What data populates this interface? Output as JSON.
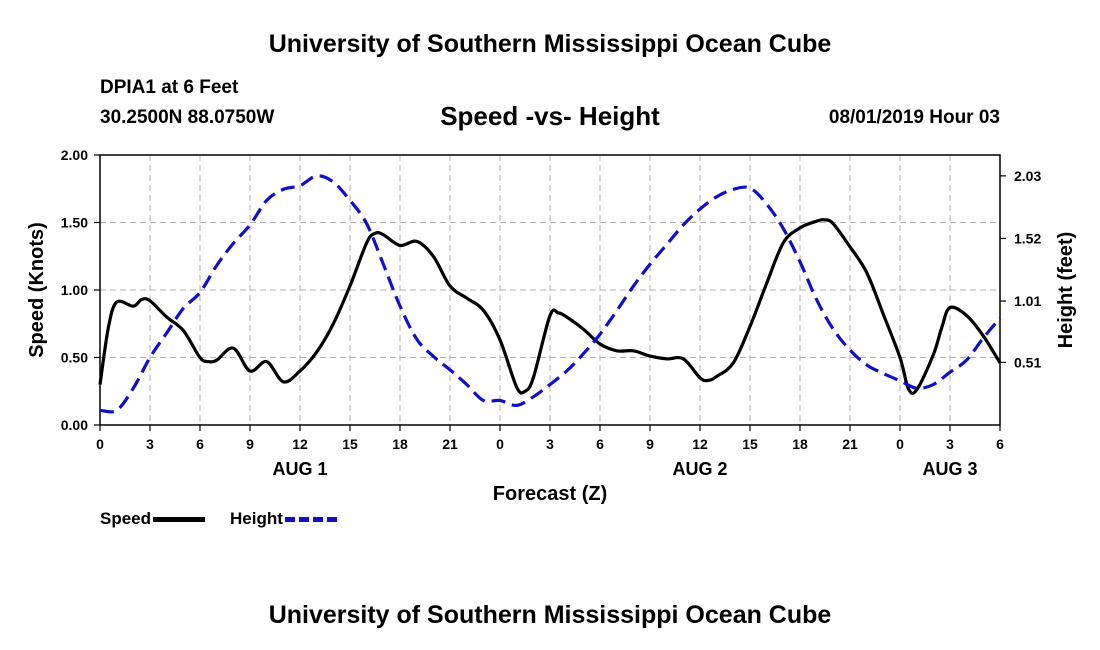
{
  "header": {
    "title": "University of Southern Mississippi Ocean Cube",
    "station": "DPIA1 at 6 Feet",
    "location": "30.2500N 88.0750W",
    "chart_title": "Speed -vs- Height",
    "datetime": "08/01/2019 Hour 03"
  },
  "footer": {
    "title": "University of Southern Mississippi Ocean Cube"
  },
  "legend": {
    "speed_label": "Speed",
    "height_label": "Height"
  },
  "colors": {
    "speed": "#000000",
    "height": "#1010c8",
    "grid": "#b0b0b0"
  },
  "chart_data": {
    "type": "line",
    "title": "Speed -vs- Height",
    "xlabel": "Forecast (Z)",
    "ylabel": "Speed (Knots)",
    "y2label": "Height (feet)",
    "xlim": [
      0,
      54
    ],
    "ylim": [
      0,
      2
    ],
    "y2lim": [
      0,
      2.2
    ],
    "grid": true,
    "legend_position": "bottom-left",
    "x_tick_hours": [
      0,
      3,
      6,
      9,
      12,
      15,
      18,
      21,
      24,
      27,
      30,
      33,
      36,
      39,
      42,
      45,
      48,
      51,
      54
    ],
    "x_tick_labels": [
      "0",
      "3",
      "6",
      "9",
      "12",
      "15",
      "18",
      "21",
      "0",
      "3",
      "6",
      "9",
      "12",
      "15",
      "18",
      "21",
      "0",
      "3",
      "6"
    ],
    "y_ticks": [
      0,
      0.5,
      1,
      1.5,
      2
    ],
    "y_tick_labels": [
      "0.00",
      "0.50",
      "1.00",
      "1.50",
      "2.00"
    ],
    "y2_ticks": [
      0.51,
      1.01,
      1.52,
      2.03
    ],
    "y2_tick_labels": [
      "0.51",
      "1.01",
      "1.52",
      "2.03"
    ],
    "day_labels": [
      {
        "text": "AUG 1",
        "x": 12
      },
      {
        "text": "AUG 2",
        "x": 36
      },
      {
        "text": "AUG 3",
        "x": 51
      }
    ],
    "series": [
      {
        "name": "Speed",
        "axis": "left",
        "dash": "solid",
        "x": [
          0,
          0.5,
          1,
          2,
          2.5,
          3,
          4,
          5,
          6,
          6.5,
          7,
          8,
          9,
          10,
          11,
          12,
          13,
          14,
          15,
          16,
          16.5,
          17,
          18,
          19,
          20,
          21,
          22,
          23,
          24,
          25,
          25.5,
          26,
          27,
          27.5,
          28,
          29,
          30,
          31,
          32,
          33,
          34,
          35,
          36,
          36.5,
          37,
          38,
          39,
          40,
          41,
          42,
          43,
          43.5,
          44,
          45,
          46,
          47,
          48,
          48.5,
          49,
          50,
          50.5,
          51,
          52,
          53,
          54
        ],
        "y": [
          0.3,
          0.72,
          0.91,
          0.88,
          0.93,
          0.92,
          0.8,
          0.7,
          0.5,
          0.47,
          0.48,
          0.57,
          0.4,
          0.47,
          0.32,
          0.4,
          0.54,
          0.75,
          1.03,
          1.35,
          1.42,
          1.41,
          1.33,
          1.36,
          1.25,
          1.03,
          0.94,
          0.85,
          0.63,
          0.28,
          0.25,
          0.35,
          0.81,
          0.83,
          0.8,
          0.71,
          0.6,
          0.55,
          0.55,
          0.51,
          0.49,
          0.49,
          0.35,
          0.33,
          0.36,
          0.46,
          0.73,
          1.05,
          1.35,
          1.46,
          1.51,
          1.52,
          1.49,
          1.32,
          1.13,
          0.82,
          0.5,
          0.27,
          0.26,
          0.52,
          0.72,
          0.87,
          0.81,
          0.66,
          0.46
        ]
      },
      {
        "name": "Height",
        "axis": "right",
        "dash": "dashed",
        "x": [
          0,
          1,
          2,
          3,
          4,
          5,
          6,
          7,
          8,
          9,
          10,
          11,
          12,
          13,
          14,
          15,
          16,
          17,
          18,
          19,
          20,
          21,
          22,
          23,
          24,
          25,
          26,
          27,
          28,
          29,
          30,
          31,
          32,
          33,
          34,
          35,
          36,
          37,
          38,
          39,
          40,
          41,
          42,
          43,
          44,
          45,
          46,
          47,
          48,
          49,
          50,
          51,
          52,
          53,
          54
        ],
        "y": [
          0.12,
          0.12,
          0.3,
          0.55,
          0.75,
          0.95,
          1.08,
          1.3,
          1.48,
          1.63,
          1.83,
          1.92,
          1.95,
          2.03,
          1.98,
          1.83,
          1.64,
          1.31,
          0.97,
          0.7,
          0.56,
          0.45,
          0.33,
          0.2,
          0.2,
          0.16,
          0.23,
          0.33,
          0.44,
          0.58,
          0.74,
          0.93,
          1.13,
          1.31,
          1.47,
          1.63,
          1.76,
          1.86,
          1.92,
          1.93,
          1.8,
          1.6,
          1.33,
          1.02,
          0.78,
          0.61,
          0.49,
          0.42,
          0.36,
          0.3,
          0.33,
          0.43,
          0.53,
          0.71,
          0.87
        ]
      }
    ]
  }
}
